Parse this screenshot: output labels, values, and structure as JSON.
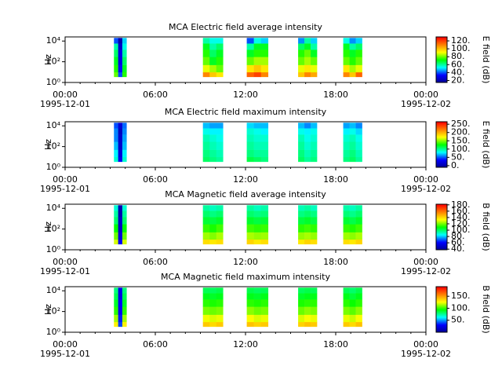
{
  "chart_data": [
    {
      "type": "spectrogram",
      "title": "MCA  Electric field average intensity",
      "y_label": "Hz",
      "colorbar_label": "E field (dB)",
      "xlim": [
        "1995-12-01 00:00",
        "1995-12-02 00:00"
      ],
      "xticks": [
        {
          "value": "1995-12-01 00:00",
          "label": "00:00",
          "date": "1995-12-01"
        },
        {
          "value": "1995-12-01 06:00",
          "label": "06:00"
        },
        {
          "value": "1995-12-01 12:00",
          "label": "12:00"
        },
        {
          "value": "1995-12-01 18:00",
          "label": "18:00"
        },
        {
          "value": "1995-12-02 00:00",
          "label": "00:00",
          "date": "1995-12-02"
        }
      ],
      "ylim": [
        1,
        25000
      ],
      "log_y": true,
      "yticks": [
        {
          "value": 1,
          "label": "10⁰"
        },
        {
          "value": 100,
          "label": "10²"
        },
        {
          "value": 10000,
          "label": "10⁴"
        }
      ],
      "clim": [
        15,
        130
      ],
      "cticks": [
        {
          "value": 20,
          "label": "20."
        },
        {
          "value": 40,
          "label": "40."
        },
        {
          "value": 60,
          "label": "60."
        },
        {
          "value": 80,
          "label": "80."
        },
        {
          "value": 100,
          "label": "100."
        },
        {
          "value": 120,
          "label": "120."
        }
      ],
      "colormap": [
        "#00008f",
        "#0000ff",
        "#00ffff",
        "#00ff00",
        "#ffff00",
        "#ff8000",
        "#ff0000"
      ],
      "yedges": [
        3.5,
        10,
        50,
        300,
        1500,
        6000,
        20000
      ],
      "blocks": [
        {
          "start": "1995-12-01 03:15",
          "end": "1995-12-01 04:05",
          "z": [
            [
              80,
              75,
              70,
              65,
              60,
              40
            ],
            [
              40,
              35,
              30,
              30,
              25,
              20
            ],
            [
              75,
              70,
              65,
              60,
              55,
              50
            ]
          ]
        },
        {
          "start": "1995-12-01 09:10",
          "end": "1995-12-01 10:30",
          "z": [
            [
              110,
              90,
              80,
              75,
              70,
              60
            ],
            [
              100,
              85,
              70,
              65,
              60,
              55
            ],
            [
              95,
              80,
              75,
              70,
              65,
              55
            ]
          ]
        },
        {
          "start": "1995-12-01 12:05",
          "end": "1995-12-01 13:30",
          "z": [
            [
              115,
              95,
              80,
              70,
              60,
              40
            ],
            [
              120,
              100,
              85,
              75,
              70,
              55
            ],
            [
              110,
              95,
              85,
              75,
              70,
              50
            ]
          ]
        },
        {
          "start": "1995-12-01 15:30",
          "end": "1995-12-01 16:45",
          "z": [
            [
              100,
              90,
              80,
              75,
              65,
              45
            ],
            [
              110,
              95,
              85,
              80,
              70,
              60
            ],
            [
              105,
              90,
              80,
              70,
              60,
              50
            ]
          ]
        },
        {
          "start": "1995-12-01 18:30",
          "end": "1995-12-01 19:45",
          "z": [
            [
              110,
              95,
              80,
              75,
              70,
              55
            ],
            [
              100,
              85,
              75,
              70,
              60,
              45
            ],
            [
              115,
              90,
              80,
              75,
              65,
              50
            ]
          ]
        }
      ]
    },
    {
      "type": "spectrogram",
      "title": "MCA  Electric field maximum intensity",
      "y_label": "Hz",
      "colorbar_label": "E field (dB)",
      "xlim": [
        "1995-12-01 00:00",
        "1995-12-02 00:00"
      ],
      "xticks": [
        {
          "value": "1995-12-01 00:00",
          "label": "00:00",
          "date": "1995-12-01"
        },
        {
          "value": "1995-12-01 06:00",
          "label": "06:00"
        },
        {
          "value": "1995-12-01 12:00",
          "label": "12:00"
        },
        {
          "value": "1995-12-01 18:00",
          "label": "18:00"
        },
        {
          "value": "1995-12-02 00:00",
          "label": "00:00",
          "date": "1995-12-02"
        }
      ],
      "ylim": [
        1,
        25000
      ],
      "log_y": true,
      "yticks": [
        {
          "value": 1,
          "label": "10⁰"
        },
        {
          "value": 100,
          "label": "10²"
        },
        {
          "value": 10000,
          "label": "10⁴"
        }
      ],
      "clim": [
        -10,
        265
      ],
      "cticks": [
        {
          "value": 0,
          "label": "0."
        },
        {
          "value": 50,
          "label": "50."
        },
        {
          "value": 100,
          "label": "100."
        },
        {
          "value": 150,
          "label": "150."
        },
        {
          "value": 200,
          "label": "200."
        },
        {
          "value": 250,
          "label": "250."
        }
      ],
      "colormap": [
        "#00008f",
        "#0000ff",
        "#00ffff",
        "#00ff00",
        "#ffff00",
        "#ff8000",
        "#ff0000"
      ],
      "yedges": [
        3.5,
        10,
        50,
        300,
        1500,
        6000,
        20000
      ],
      "blocks": [
        {
          "start": "1995-12-01 03:15",
          "end": "1995-12-01 04:05",
          "z": [
            [
              90,
              80,
              70,
              60,
              60,
              50
            ],
            [
              30,
              20,
              15,
              15,
              10,
              20
            ],
            [
              90,
              80,
              70,
              65,
              60,
              55
            ]
          ]
        },
        {
          "start": "1995-12-01 09:10",
          "end": "1995-12-01 10:30",
          "z": [
            [
              110,
              105,
              100,
              95,
              85,
              70
            ],
            [
              105,
              100,
              95,
              90,
              80,
              65
            ],
            [
              100,
              95,
              90,
              85,
              80,
              65
            ]
          ]
        },
        {
          "start": "1995-12-01 12:05",
          "end": "1995-12-01 13:30",
          "z": [
            [
              115,
              105,
              100,
              95,
              90,
              75
            ],
            [
              110,
              100,
              95,
              90,
              85,
              70
            ],
            [
              105,
              100,
              95,
              90,
              80,
              70
            ]
          ]
        },
        {
          "start": "1995-12-01 15:30",
          "end": "1995-12-01 16:45",
          "z": [
            [
              110,
              105,
              100,
              95,
              85,
              70
            ],
            [
              100,
              95,
              90,
              85,
              80,
              60
            ],
            [
              105,
              100,
              95,
              90,
              85,
              70
            ]
          ]
        },
        {
          "start": "1995-12-01 18:30",
          "end": "1995-12-01 19:45",
          "z": [
            [
              105,
              100,
              95,
              90,
              80,
              65
            ],
            [
              110,
              105,
              100,
              95,
              85,
              70
            ],
            [
              100,
              95,
              90,
              85,
              75,
              60
            ]
          ]
        }
      ]
    },
    {
      "type": "spectrogram",
      "title": "MCA  Magnetic field average intensity",
      "y_label": "Hz",
      "colorbar_label": "B field (dB)",
      "xlim": [
        "1995-12-01 00:00",
        "1995-12-02 00:00"
      ],
      "xticks": [
        {
          "value": "1995-12-01 00:00",
          "label": "00:00",
          "date": "1995-12-01"
        },
        {
          "value": "1995-12-01 06:00",
          "label": "06:00"
        },
        {
          "value": "1995-12-01 12:00",
          "label": "12:00"
        },
        {
          "value": "1995-12-01 18:00",
          "label": "18:00"
        },
        {
          "value": "1995-12-02 00:00",
          "label": "00:00",
          "date": "1995-12-02"
        }
      ],
      "ylim": [
        1,
        25000
      ],
      "log_y": true,
      "yticks": [
        {
          "value": 1,
          "label": "10⁰"
        },
        {
          "value": 100,
          "label": "10²"
        },
        {
          "value": 10000,
          "label": "10⁴"
        }
      ],
      "clim": [
        38,
        182
      ],
      "cticks": [
        {
          "value": 40,
          "label": "40."
        },
        {
          "value": 60,
          "label": "60."
        },
        {
          "value": 80,
          "label": "80."
        },
        {
          "value": 100,
          "label": "100."
        },
        {
          "value": 120,
          "label": "120."
        },
        {
          "value": 140,
          "label": "140."
        },
        {
          "value": 160,
          "label": "160."
        },
        {
          "value": 180,
          "label": "180."
        }
      ],
      "colormap": [
        "#00008f",
        "#0000ff",
        "#00ffff",
        "#00ff00",
        "#ffff00",
        "#ff8000",
        "#ff0000"
      ],
      "yedges": [
        3.5,
        10,
        50,
        300,
        1500,
        6000,
        20000
      ],
      "blocks": [
        {
          "start": "1995-12-01 03:15",
          "end": "1995-12-01 04:05",
          "z": [
            [
              130,
              120,
              110,
              100,
              95,
              90
            ],
            [
              60,
              55,
              50,
              50,
              45,
              45
            ],
            [
              130,
              120,
              110,
              100,
              95,
              90
            ]
          ]
        },
        {
          "start": "1995-12-01 09:10",
          "end": "1995-12-01 10:30",
          "z": [
            [
              140,
              125,
              115,
              105,
              100,
              95
            ],
            [
              138,
              122,
              112,
              104,
              98,
              92
            ],
            [
              140,
              126,
              116,
              106,
              100,
              94
            ]
          ]
        },
        {
          "start": "1995-12-01 12:05",
          "end": "1995-12-01 13:30",
          "z": [
            [
              142,
              126,
              116,
              106,
              100,
              95
            ],
            [
              138,
              124,
              114,
              104,
              98,
              92
            ],
            [
              140,
              125,
              115,
              105,
              99,
              94
            ]
          ]
        },
        {
          "start": "1995-12-01 15:30",
          "end": "1995-12-01 16:45",
          "z": [
            [
              138,
              124,
              114,
              104,
              98,
              93
            ],
            [
              142,
              126,
              116,
              106,
              100,
              95
            ],
            [
              140,
              124,
              114,
              104,
              98,
              92
            ]
          ]
        },
        {
          "start": "1995-12-01 18:30",
          "end": "1995-12-01 19:45",
          "z": [
            [
              140,
              125,
              115,
              105,
              99,
              94
            ],
            [
              138,
              123,
              113,
              103,
              97,
              92
            ],
            [
              142,
              126,
              116,
              106,
              100,
              95
            ]
          ]
        }
      ]
    },
    {
      "type": "spectrogram",
      "title": "MCA  Magnetic field maximum intensity",
      "y_label": "Hz",
      "colorbar_label": "B field (dB)",
      "xlim": [
        "1995-12-01 00:00",
        "1995-12-02 00:00"
      ],
      "xticks": [
        {
          "value": "1995-12-01 00:00",
          "label": "00:00",
          "date": "1995-12-01"
        },
        {
          "value": "1995-12-01 06:00",
          "label": "06:00"
        },
        {
          "value": "1995-12-01 12:00",
          "label": "12:00"
        },
        {
          "value": "1995-12-01 18:00",
          "label": "18:00"
        },
        {
          "value": "1995-12-02 00:00",
          "label": "00:00",
          "date": "1995-12-02"
        }
      ],
      "ylim": [
        1,
        25000
      ],
      "log_y": true,
      "yticks": [
        {
          "value": 1,
          "label": "10⁰"
        },
        {
          "value": 100,
          "label": "10²"
        },
        {
          "value": 10000,
          "label": "10⁴"
        }
      ],
      "clim": [
        0,
        190
      ],
      "cticks": [
        {
          "value": 50,
          "label": "50."
        },
        {
          "value": 100,
          "label": "100."
        },
        {
          "value": 150,
          "label": "150."
        }
      ],
      "colormap": [
        "#00008f",
        "#0000ff",
        "#00ffff",
        "#00ff00",
        "#ffff00",
        "#ff8000",
        "#ff0000"
      ],
      "yedges": [
        3.5,
        10,
        50,
        300,
        1500,
        6000,
        20000
      ],
      "blocks": [
        {
          "start": "1995-12-01 03:15",
          "end": "1995-12-01 04:05",
          "z": [
            [
              130,
              115,
              100,
              90,
              85,
              80
            ],
            [
              40,
              35,
              30,
              30,
              25,
              25
            ],
            [
              130,
              115,
              100,
              90,
              85,
              80
            ]
          ]
        },
        {
          "start": "1995-12-01 09:10",
          "end": "1995-12-01 10:30",
          "z": [
            [
              140,
              125,
              110,
              100,
              92,
              85
            ],
            [
              136,
              122,
              108,
              98,
              90,
              84
            ],
            [
              140,
              124,
              110,
              100,
              92,
              86
            ]
          ]
        },
        {
          "start": "1995-12-01 12:05",
          "end": "1995-12-01 13:30",
          "z": [
            [
              142,
              126,
              112,
              100,
              92,
              86
            ],
            [
              138,
              122,
              108,
              98,
              90,
              84
            ],
            [
              140,
              124,
              110,
              100,
              92,
              85
            ]
          ]
        },
        {
          "start": "1995-12-01 15:30",
          "end": "1995-12-01 16:45",
          "z": [
            [
              138,
              122,
              108,
              98,
              90,
              84
            ],
            [
              142,
              126,
              112,
              100,
              92,
              86
            ],
            [
              140,
              124,
              110,
              100,
              92,
              85
            ]
          ]
        },
        {
          "start": "1995-12-01 18:30",
          "end": "1995-12-01 19:45",
          "z": [
            [
              140,
              124,
              110,
              100,
              92,
              85
            ],
            [
              136,
              120,
              106,
              96,
              88,
              82
            ],
            [
              142,
              126,
              112,
              100,
              92,
              86
            ]
          ]
        }
      ]
    }
  ]
}
